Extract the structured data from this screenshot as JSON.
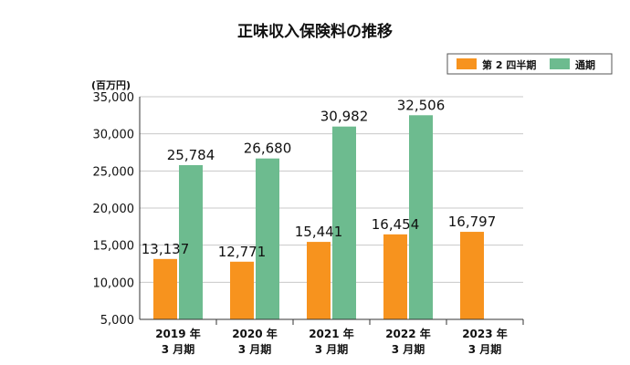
{
  "chart_data": {
    "type": "bar",
    "title": "正味収入保険料の推移",
    "unit_label": "(百万円)",
    "categories": [
      {
        "line1": "2019 年",
        "line2": "3 月期"
      },
      {
        "line1": "2020 年",
        "line2": "3 月期"
      },
      {
        "line1": "2021 年",
        "line2": "3 月期"
      },
      {
        "line1": "2022 年",
        "line2": "3 月期"
      },
      {
        "line1": "2023 年",
        "line2": "3 月期"
      }
    ],
    "series": [
      {
        "name": "第 2 四半期",
        "color": "#f7931e",
        "values": [
          13137,
          12771,
          15441,
          16454,
          16797
        ],
        "labels": [
          "13,137",
          "12,771",
          "15,441",
          "16,454",
          "16,797"
        ]
      },
      {
        "name": "通期",
        "color": "#6dbb8f",
        "values": [
          25784,
          26680,
          30982,
          32506,
          null
        ],
        "labels": [
          "25,784",
          "26,680",
          "30,982",
          "32,506",
          null
        ]
      }
    ],
    "ylim": [
      5000,
      35000
    ],
    "yticks": [
      {
        "value": 5000,
        "label": "5,000"
      },
      {
        "value": 10000,
        "label": "10,000"
      },
      {
        "value": 15000,
        "label": "15,000"
      },
      {
        "value": 20000,
        "label": "20,000"
      },
      {
        "value": 25000,
        "label": "25,000"
      },
      {
        "value": 30000,
        "label": "30,000"
      },
      {
        "value": 35000,
        "label": "35,000"
      }
    ],
    "grid": true,
    "legend_position": "top-right"
  }
}
